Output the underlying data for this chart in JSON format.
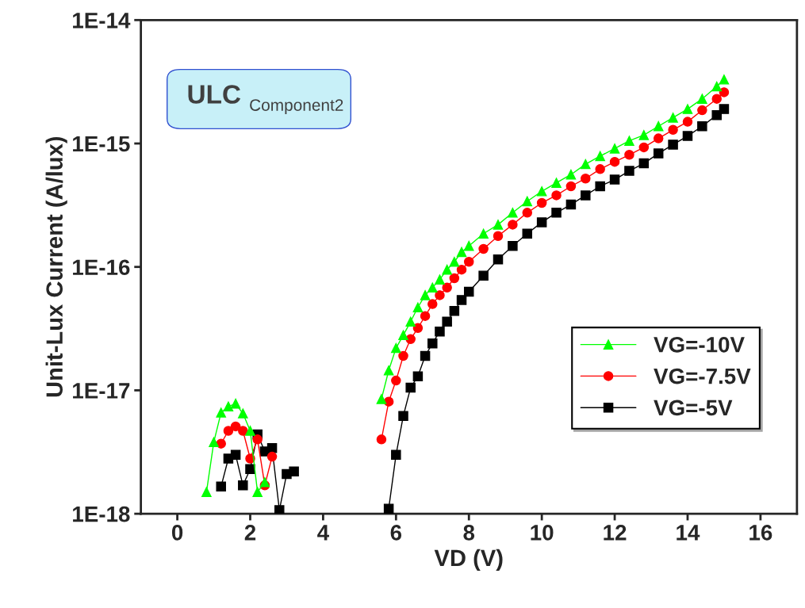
{
  "chart_data": {
    "type": "line",
    "xlabel": "VD (V)",
    "ylabel": "Unit-Lux Current (A/lux)",
    "log": "y",
    "grid": false,
    "legend": "right",
    "xlim": [
      -1,
      17
    ],
    "xticks": [
      0,
      2,
      4,
      6,
      8,
      10,
      12,
      14,
      16
    ],
    "ylim": [
      1e-18,
      1e-14
    ],
    "yticks": [
      {
        "value": 1e-18,
        "label": "1E-18"
      },
      {
        "value": 1e-17,
        "label": "1E-17"
      },
      {
        "value": 1e-16,
        "label": "1E-16"
      },
      {
        "value": 1e-15,
        "label": "1E-15"
      },
      {
        "value": 1e-14,
        "label": "1E-14"
      }
    ],
    "annotations": [
      "ULC",
      "Component2"
    ],
    "series": [
      {
        "name": "VG=-10V",
        "color": "#00ff00",
        "marker": "triangle",
        "x": [
          0.8,
          1.0,
          1.2,
          1.4,
          1.6,
          1.8,
          2.0,
          2.2,
          2.4,
          2.6,
          5.6,
          5.8,
          6.0,
          6.2,
          6.4,
          6.6,
          6.8,
          7.0,
          7.2,
          7.4,
          7.6,
          7.8,
          8.0,
          8.4,
          8.8,
          9.2,
          9.6,
          10.0,
          10.4,
          10.8,
          11.2,
          11.6,
          12.0,
          12.4,
          12.8,
          13.2,
          13.6,
          14.0,
          14.4,
          14.8,
          15.0
        ],
        "values": [
          1.5e-18,
          3.8e-18,
          6.6e-18,
          7.4e-18,
          7.8e-18,
          6.5e-18,
          4.7e-18,
          1.5e-18,
          1.8e-18,
          null,
          8.5e-18,
          1.45e-17,
          2.2e-17,
          2.8e-17,
          3.6e-17,
          4.7e-17,
          5.9e-17,
          6.8e-17,
          7.9e-17,
          9.5e-17,
          1.1e-16,
          1.32e-16,
          1.48e-16,
          1.86e-16,
          2.2e-16,
          2.75e-16,
          3.4e-16,
          4.1e-16,
          4.8e-16,
          5.6e-16,
          6.8e-16,
          7.9e-16,
          9.1e-16,
          1.05e-15,
          1.17e-15,
          1.38e-15,
          1.62e-15,
          1.9e-15,
          2.3e-15,
          2.9e-15,
          3.3e-15
        ]
      },
      {
        "name": "VG=-7.5V",
        "color": "#ff0000",
        "marker": "circle",
        "x": [
          1.2,
          1.4,
          1.6,
          1.8,
          2.0,
          2.2,
          2.4,
          2.6,
          2.8,
          5.6,
          5.8,
          6.0,
          6.2,
          6.4,
          6.6,
          6.8,
          7.0,
          7.2,
          7.4,
          7.6,
          7.8,
          8.0,
          8.4,
          8.8,
          9.2,
          9.6,
          10.0,
          10.4,
          10.8,
          11.2,
          11.6,
          12.0,
          12.4,
          12.8,
          13.2,
          13.6,
          14.0,
          14.4,
          14.8,
          15.0
        ],
        "values": [
          3.7e-18,
          4.7e-18,
          5.1e-18,
          4.7e-18,
          2.8e-18,
          4e-18,
          1.7e-18,
          2.9e-18,
          null,
          4e-18,
          8.1e-18,
          1.2e-17,
          1.9e-17,
          2.6e-17,
          3.2e-17,
          4e-17,
          5e-17,
          5.9e-17,
          6.8e-17,
          8.1e-17,
          9.5e-17,
          1.1e-16,
          1.4e-16,
          1.78e-16,
          2.2e-16,
          2.75e-16,
          3.3e-16,
          3.8e-16,
          4.5e-16,
          5.2e-16,
          6.2e-16,
          7.1e-16,
          8.1e-16,
          9.3e-16,
          1.1e-15,
          1.29e-15,
          1.5e-15,
          1.86e-15,
          2.3e-15,
          2.6e-15
        ]
      },
      {
        "name": "VG=-5V",
        "color": "#000000",
        "marker": "square",
        "x": [
          1.2,
          1.4,
          1.6,
          1.8,
          2.0,
          2.2,
          2.4,
          2.6,
          2.8,
          3.0,
          3.2,
          3.4,
          5.8,
          6.0,
          6.2,
          6.4,
          6.6,
          6.8,
          7.0,
          7.2,
          7.4,
          7.6,
          7.8,
          8.0,
          8.4,
          8.8,
          9.2,
          9.6,
          10.0,
          10.4,
          10.8,
          11.2,
          11.6,
          12.0,
          12.4,
          12.8,
          13.2,
          13.6,
          14.0,
          14.4,
          14.8,
          15.0
        ],
        "values": [
          1.66e-18,
          2.8e-18,
          3e-18,
          1.7e-18,
          2.3e-18,
          4.4e-18,
          3.2e-18,
          3.4e-18,
          1.07e-18,
          2.1e-18,
          2.2e-18,
          null,
          1.1e-18,
          3e-18,
          6.2e-18,
          1.05e-17,
          1.3e-17,
          1.9e-17,
          2.4e-17,
          3e-17,
          3.6e-17,
          4.4e-17,
          5.4e-17,
          6.3e-17,
          8.5e-17,
          1.15e-16,
          1.48e-16,
          1.86e-16,
          2.3e-16,
          2.75e-16,
          3.2e-16,
          3.8e-16,
          4.5e-16,
          5.1e-16,
          6e-16,
          6.9e-16,
          8.3e-16,
          9.8e-16,
          1.15e-15,
          1.38e-15,
          1.7e-15,
          1.9e-15
        ]
      }
    ]
  }
}
